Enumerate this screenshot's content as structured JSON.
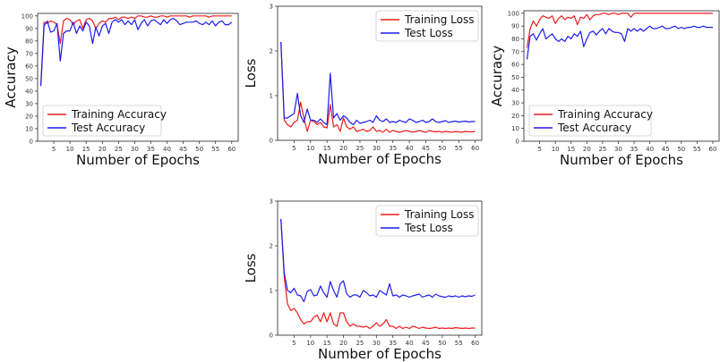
{
  "chart_data": [
    {
      "type": "line",
      "xlabel": "Number of Epochs",
      "ylabel": "Accuracy",
      "xlim": [
        0,
        62
      ],
      "ylim": [
        0,
        102
      ],
      "xticks": [
        5,
        10,
        15,
        20,
        25,
        30,
        35,
        40,
        45,
        50,
        55,
        60
      ],
      "yticks": [
        0,
        10,
        20,
        30,
        40,
        50,
        60,
        70,
        80,
        90,
        100
      ],
      "legend_position": "lower-left",
      "x": [
        1,
        2,
        3,
        4,
        5,
        6,
        7,
        8,
        9,
        10,
        11,
        12,
        13,
        14,
        15,
        16,
        17,
        18,
        19,
        20,
        21,
        22,
        23,
        24,
        25,
        26,
        27,
        28,
        29,
        30,
        31,
        32,
        33,
        34,
        35,
        36,
        37,
        38,
        39,
        40,
        41,
        42,
        43,
        44,
        45,
        46,
        47,
        48,
        49,
        50,
        51,
        52,
        53,
        54,
        55,
        56,
        57,
        58,
        59,
        60
      ],
      "series": [
        {
          "name": "Training Accuracy",
          "color": "#ee1c1c",
          "values": [
            45,
            95,
            94,
            96,
            95,
            93,
            78,
            96,
            98,
            97,
            93,
            96,
            97,
            90,
            97,
            98,
            96,
            90,
            94,
            96,
            95,
            98,
            98,
            99,
            97,
            99,
            99,
            98,
            99,
            98,
            100,
            100,
            99,
            99,
            100,
            99,
            99,
            100,
            100,
            99,
            100,
            100,
            100,
            100,
            100,
            100,
            99,
            100,
            100,
            100,
            100,
            100,
            99,
            100,
            100,
            100,
            100,
            100,
            100,
            100
          ]
        },
        {
          "name": "Test Accuracy",
          "color": "#1c1cee",
          "values": [
            44,
            92,
            96,
            87,
            88,
            94,
            64,
            86,
            88,
            88,
            95,
            86,
            92,
            88,
            95,
            92,
            78,
            91,
            84,
            92,
            94,
            86,
            95,
            97,
            95,
            97,
            93,
            96,
            93,
            97,
            89,
            94,
            97,
            92,
            96,
            97,
            95,
            93,
            97,
            94,
            97,
            98,
            96,
            93,
            94,
            95,
            95,
            95,
            96,
            94,
            93,
            95,
            93,
            96,
            92,
            95,
            96,
            93,
            93,
            95
          ]
        }
      ]
    },
    {
      "type": "line",
      "xlabel": "Number of Epochs",
      "ylabel": "Loss",
      "xlim": [
        0,
        62
      ],
      "ylim": [
        0,
        3
      ],
      "xticks": [
        5,
        10,
        15,
        20,
        25,
        30,
        35,
        40,
        45,
        50,
        55,
        60
      ],
      "yticks": [
        0,
        1,
        2,
        3
      ],
      "legend_position": "upper-right",
      "x": [
        1,
        2,
        3,
        4,
        5,
        6,
        7,
        8,
        9,
        10,
        11,
        12,
        13,
        14,
        15,
        16,
        17,
        18,
        19,
        20,
        21,
        22,
        23,
        24,
        25,
        26,
        27,
        28,
        29,
        30,
        31,
        32,
        33,
        34,
        35,
        36,
        37,
        38,
        39,
        40,
        41,
        42,
        43,
        44,
        45,
        46,
        47,
        48,
        49,
        50,
        51,
        52,
        53,
        54,
        55,
        56,
        57,
        58,
        59,
        60
      ],
      "series": [
        {
          "name": "Training Loss",
          "color": "#ee1c1c",
          "values": [
            2.2,
            0.45,
            0.35,
            0.3,
            0.4,
            0.45,
            0.85,
            0.5,
            0.2,
            0.45,
            0.42,
            0.35,
            0.4,
            0.3,
            0.28,
            0.8,
            0.3,
            0.35,
            0.2,
            0.5,
            0.3,
            0.25,
            0.3,
            0.2,
            0.22,
            0.25,
            0.2,
            0.22,
            0.3,
            0.2,
            0.22,
            0.18,
            0.25,
            0.18,
            0.22,
            0.2,
            0.18,
            0.2,
            0.22,
            0.2,
            0.18,
            0.2,
            0.22,
            0.2,
            0.18,
            0.22,
            0.2,
            0.19,
            0.2,
            0.18,
            0.2,
            0.19,
            0.18,
            0.2,
            0.19,
            0.18,
            0.2,
            0.19,
            0.19,
            0.2
          ]
        },
        {
          "name": "Test Loss",
          "color": "#1c1cee",
          "values": [
            2.2,
            0.5,
            0.5,
            0.55,
            0.6,
            1.05,
            0.55,
            0.4,
            0.7,
            0.45,
            0.45,
            0.4,
            0.48,
            0.4,
            0.35,
            1.5,
            0.5,
            0.6,
            0.45,
            0.55,
            0.5,
            0.4,
            0.35,
            0.45,
            0.38,
            0.4,
            0.42,
            0.45,
            0.4,
            0.55,
            0.45,
            0.42,
            0.48,
            0.4,
            0.42,
            0.4,
            0.45,
            0.42,
            0.4,
            0.48,
            0.45,
            0.4,
            0.42,
            0.45,
            0.4,
            0.42,
            0.48,
            0.42,
            0.4,
            0.42,
            0.44,
            0.4,
            0.42,
            0.43,
            0.41,
            0.42,
            0.43,
            0.41,
            0.42,
            0.42
          ]
        }
      ]
    },
    {
      "type": "line",
      "xlabel": "Number of Epochs",
      "ylabel": "Accuracy",
      "xlim": [
        0,
        62
      ],
      "ylim": [
        0,
        102
      ],
      "xticks": [
        5,
        10,
        15,
        20,
        25,
        30,
        35,
        40,
        45,
        50,
        55,
        60
      ],
      "yticks": [
        0,
        10,
        20,
        30,
        40,
        50,
        60,
        70,
        80,
        90,
        100
      ],
      "legend_position": "lower-left",
      "x": [
        1,
        2,
        3,
        4,
        5,
        6,
        7,
        8,
        9,
        10,
        11,
        12,
        13,
        14,
        15,
        16,
        17,
        18,
        19,
        20,
        21,
        22,
        23,
        24,
        25,
        26,
        27,
        28,
        29,
        30,
        31,
        32,
        33,
        34,
        35,
        36,
        37,
        38,
        39,
        40,
        41,
        42,
        43,
        44,
        45,
        46,
        47,
        48,
        49,
        50,
        51,
        52,
        53,
        54,
        55,
        56,
        57,
        58,
        59,
        60
      ],
      "series": [
        {
          "name": "Training Accuracy",
          "color": "#ee1c1c",
          "values": [
            73,
            88,
            94,
            90,
            95,
            98,
            97,
            96,
            98,
            92,
            96,
            98,
            95,
            97,
            96,
            98,
            91,
            97,
            96,
            99,
            95,
            98,
            99,
            99,
            100,
            100,
            99,
            100,
            100,
            99,
            100,
            100,
            100,
            97,
            100,
            100,
            100,
            100,
            100,
            100,
            100,
            100,
            100,
            100,
            100,
            100,
            100,
            100,
            100,
            100,
            100,
            100,
            100,
            100,
            100,
            100,
            100,
            100,
            100,
            100
          ]
        },
        {
          "name": "Test Accuracy",
          "color": "#1c1cee",
          "values": [
            64,
            82,
            84,
            79,
            84,
            88,
            80,
            82,
            84,
            80,
            78,
            80,
            78,
            82,
            80,
            84,
            82,
            86,
            74,
            80,
            85,
            86,
            83,
            86,
            88,
            84,
            88,
            86,
            85,
            85,
            84,
            78,
            88,
            86,
            88,
            86,
            88,
            86,
            88,
            90,
            88,
            88,
            89,
            90,
            88,
            88,
            89,
            90,
            88,
            89,
            88,
            89,
            89,
            90,
            89,
            89,
            90,
            89,
            89,
            89
          ]
        }
      ]
    },
    {
      "type": "line",
      "xlabel": "Number of Epochs",
      "ylabel": "Loss",
      "xlim": [
        0,
        62
      ],
      "ylim": [
        0,
        3
      ],
      "xticks": [
        5,
        10,
        15,
        20,
        25,
        30,
        35,
        40,
        45,
        50,
        55,
        60
      ],
      "yticks": [
        0,
        1,
        2,
        3
      ],
      "legend_position": "upper-right",
      "x": [
        1,
        2,
        3,
        4,
        5,
        6,
        7,
        8,
        9,
        10,
        11,
        12,
        13,
        14,
        15,
        16,
        17,
        18,
        19,
        20,
        21,
        22,
        23,
        24,
        25,
        26,
        27,
        28,
        29,
        30,
        31,
        32,
        33,
        34,
        35,
        36,
        37,
        38,
        39,
        40,
        41,
        42,
        43,
        44,
        45,
        46,
        47,
        48,
        49,
        50,
        51,
        52,
        53,
        54,
        55,
        56,
        57,
        58,
        59,
        60
      ],
      "series": [
        {
          "name": "Training Loss",
          "color": "#ee1c1c",
          "values": [
            2.6,
            1.3,
            0.7,
            0.55,
            0.6,
            0.5,
            0.35,
            0.25,
            0.3,
            0.3,
            0.4,
            0.45,
            0.3,
            0.5,
            0.3,
            0.5,
            0.25,
            0.2,
            0.5,
            0.5,
            0.3,
            0.2,
            0.25,
            0.2,
            0.2,
            0.18,
            0.2,
            0.15,
            0.2,
            0.28,
            0.2,
            0.25,
            0.35,
            0.2,
            0.2,
            0.15,
            0.2,
            0.15,
            0.18,
            0.15,
            0.2,
            0.18,
            0.15,
            0.18,
            0.16,
            0.15,
            0.16,
            0.18,
            0.15,
            0.16,
            0.15,
            0.16,
            0.15,
            0.17,
            0.16,
            0.15,
            0.16,
            0.15,
            0.16,
            0.16
          ]
        },
        {
          "name": "Test Loss",
          "color": "#1c1cee",
          "values": [
            2.6,
            1.4,
            1.0,
            0.95,
            1.05,
            0.9,
            0.88,
            0.75,
            0.98,
            1.02,
            0.88,
            0.9,
            1.1,
            0.95,
            0.85,
            1.2,
            1.0,
            0.85,
            1.15,
            1.22,
            0.92,
            0.85,
            0.9,
            0.9,
            0.85,
            1.0,
            0.95,
            0.88,
            0.9,
            0.85,
            1.0,
            0.95,
            0.9,
            1.15,
            0.88,
            0.9,
            0.85,
            0.9,
            0.88,
            0.85,
            0.88,
            0.9,
            0.92,
            0.85,
            0.88,
            0.9,
            0.85,
            0.92,
            0.88,
            0.86,
            0.85,
            0.88,
            0.86,
            0.88,
            0.85,
            0.88,
            0.86,
            0.88,
            0.87,
            0.9
          ]
        }
      ]
    }
  ]
}
